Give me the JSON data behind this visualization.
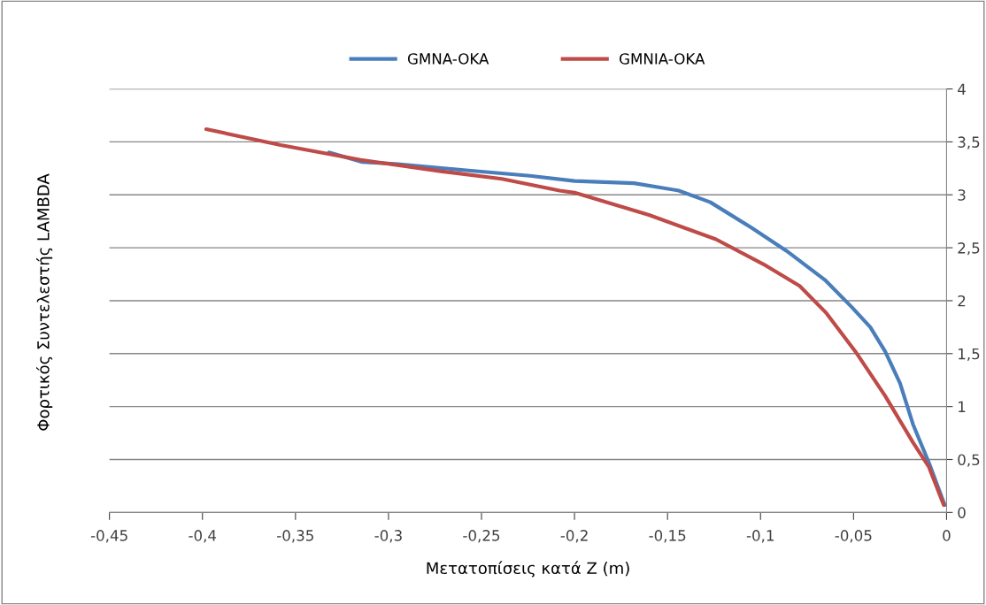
{
  "chart_data": {
    "type": "line",
    "xlabel": "Μετατοπίσεις κατά Z (m)",
    "ylabel": "Φορτικός Συντελεστής LAMBDA",
    "xlim": [
      -0.45,
      0
    ],
    "ylim": [
      0,
      4
    ],
    "xticks": [
      {
        "value": -0.45,
        "label": "-0,45"
      },
      {
        "value": -0.4,
        "label": "-0,4"
      },
      {
        "value": -0.35,
        "label": "-0,35"
      },
      {
        "value": -0.3,
        "label": "-0,3"
      },
      {
        "value": -0.25,
        "label": "-0,25"
      },
      {
        "value": -0.2,
        "label": "-0,2"
      },
      {
        "value": -0.15,
        "label": "-0,15"
      },
      {
        "value": -0.1,
        "label": "-0,1"
      },
      {
        "value": -0.05,
        "label": "-0,05"
      },
      {
        "value": 0,
        "label": "0"
      }
    ],
    "yticks": [
      0,
      {
        "value": 0.5,
        "label": "0,5"
      },
      1,
      {
        "value": 1.5,
        "label": "1,5"
      },
      2,
      {
        "value": 2.5,
        "label": "2,5"
      },
      3,
      {
        "value": 3.5,
        "label": "3,5"
      },
      4
    ],
    "grid": "y",
    "legend": "top",
    "marker": "none",
    "line_style": "solid",
    "series": [
      {
        "name": "GMNA-OKA",
        "color": "#4a7ebb",
        "x": [
          -0.332,
          -0.314,
          -0.295,
          -0.257,
          -0.224,
          -0.2,
          -0.168,
          -0.144,
          -0.127,
          -0.105,
          -0.086,
          -0.065,
          -0.051,
          -0.041,
          -0.033,
          -0.025,
          -0.018,
          -0.0095,
          -0.001
        ],
        "values": [
          3.4,
          3.31,
          3.29,
          3.23,
          3.18,
          3.13,
          3.11,
          3.04,
          2.93,
          2.69,
          2.47,
          2.19,
          1.94,
          1.75,
          1.52,
          1.22,
          0.83,
          0.47,
          0.07
        ]
      },
      {
        "name": "GMNIA-OKA",
        "color": "#be4b48",
        "x": [
          -0.398,
          -0.358,
          -0.315,
          -0.271,
          -0.239,
          -0.208,
          -0.2,
          -0.16,
          -0.124,
          -0.097,
          -0.079,
          -0.065,
          -0.049,
          -0.033,
          -0.018,
          -0.0095,
          -0.0015
        ],
        "values": [
          3.62,
          3.47,
          3.33,
          3.22,
          3.15,
          3.04,
          3.02,
          2.81,
          2.58,
          2.33,
          2.14,
          1.89,
          1.52,
          1.1,
          0.66,
          0.43,
          0.07
        ]
      }
    ]
  }
}
